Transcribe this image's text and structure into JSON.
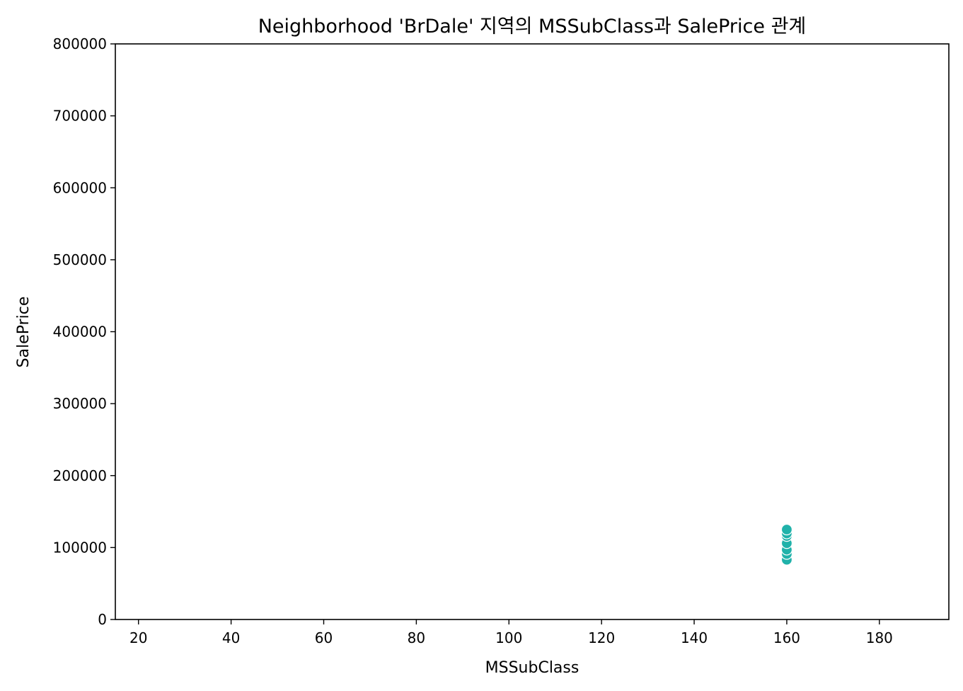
{
  "chart_data": {
    "type": "scatter",
    "title": "Neighborhood 'BrDale' 지역의 MSSubClass과 SalePrice 관계",
    "xlabel": "MSSubClass",
    "ylabel": "SalePrice",
    "xlim": [
      15,
      195
    ],
    "ylim": [
      0,
      800000
    ],
    "x_ticks": [
      20,
      40,
      60,
      80,
      100,
      120,
      140,
      160,
      180
    ],
    "y_ticks": [
      0,
      100000,
      200000,
      300000,
      400000,
      500000,
      600000,
      700000,
      800000
    ],
    "grid": false,
    "marker_color": "#20b2aa",
    "marker_edge_color": "#ffffff",
    "series": [
      {
        "points": [
          {
            "x": 160,
            "y": 83000
          },
          {
            "x": 160,
            "y": 91000
          },
          {
            "x": 160,
            "y": 97000
          },
          {
            "x": 160,
            "y": 106000
          },
          {
            "x": 160,
            "y": 116000
          },
          {
            "x": 160,
            "y": 119500
          },
          {
            "x": 160,
            "y": 125000
          }
        ]
      }
    ]
  }
}
